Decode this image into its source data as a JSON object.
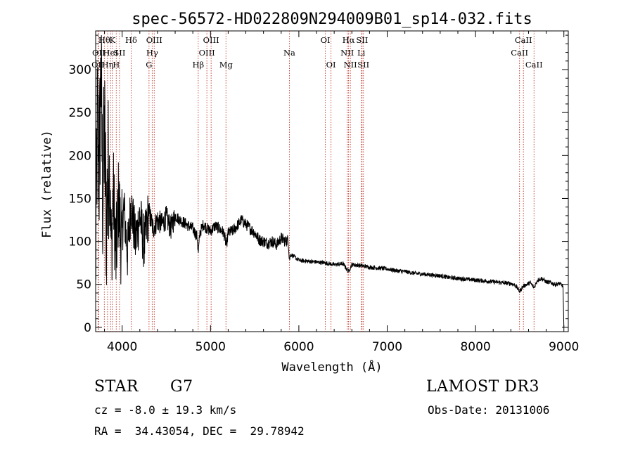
{
  "chart_data": {
    "type": "line",
    "title": "spec-56572-HD022809N294009B01_sp14-032.fits",
    "xlabel": "Wavelength (Å)",
    "ylabel": "Flux (relative)",
    "xlim": [
      3700,
      9050
    ],
    "ylim": [
      -5,
      345
    ],
    "xticks": [
      4000,
      5000,
      6000,
      7000,
      8000,
      9000
    ],
    "yticks": [
      0,
      50,
      100,
      150,
      200,
      250,
      300
    ],
    "grid": false,
    "series": [
      {
        "name": "spectrum",
        "x": [
          3700,
          3720,
          3740,
          3760,
          3780,
          3800,
          3820,
          3850,
          3880,
          3900,
          3930,
          3960,
          3990,
          4020,
          4060,
          4100,
          4150,
          4200,
          4250,
          4300,
          4350,
          4400,
          4450,
          4500,
          4550,
          4600,
          4650,
          4700,
          4750,
          4800,
          4850,
          4861,
          4880,
          4920,
          4960,
          5000,
          5050,
          5100,
          5150,
          5180,
          5200,
          5250,
          5300,
          5350,
          5400,
          5450,
          5500,
          5550,
          5600,
          5650,
          5700,
          5750,
          5800,
          5850,
          5880,
          5893,
          5910,
          5950,
          6000,
          6100,
          6200,
          6300,
          6400,
          6500,
          6563,
          6600,
          6700,
          6800,
          6900,
          7000,
          7100,
          7200,
          7300,
          7400,
          7500,
          7600,
          7700,
          7800,
          7900,
          8000,
          8100,
          8200,
          8300,
          8400,
          8450,
          8498,
          8542,
          8580,
          8620,
          8662,
          8700,
          8750,
          8800,
          8850,
          8900,
          8950,
          8990,
          9000
        ],
        "y": [
          70,
          250,
          180,
          300,
          150,
          230,
          120,
          200,
          90,
          160,
          80,
          150,
          95,
          140,
          85,
          145,
          100,
          130,
          95,
          135,
          115,
          125,
          120,
          128,
          115,
          130,
          125,
          122,
          118,
          115,
          105,
          85,
          110,
          120,
          115,
          112,
          118,
          115,
          110,
          95,
          110,
          112,
          118,
          125,
          120,
          115,
          110,
          102,
          100,
          98,
          100,
          96,
          104,
          100,
          102,
          80,
          85,
          82,
          78,
          77,
          76,
          75,
          73,
          74,
          65,
          73,
          72,
          70,
          69,
          68,
          66,
          65,
          63,
          62,
          61,
          60,
          58,
          57,
          56,
          55,
          54,
          53,
          52,
          51,
          49,
          42,
          48,
          50,
          52,
          46,
          55,
          57,
          53,
          52,
          50,
          51,
          48,
          0
        ]
      }
    ],
    "lines": [
      {
        "w": 3727,
        "label": "OII",
        "row": 3
      },
      {
        "w": 3734,
        "label": "OII",
        "row": 2
      },
      {
        "w": 3798,
        "label": "Hθ",
        "row": 1
      },
      {
        "w": 3835,
        "label": "Hη",
        "row": 3
      },
      {
        "w": 3869,
        "label": "HeI",
        "row": 2
      },
      {
        "w": 3889,
        "label": "K",
        "row": 1
      },
      {
        "w": 3933,
        "label": "H",
        "row": 3
      },
      {
        "w": 3970,
        "label": "SII",
        "row": 2
      },
      {
        "w": 4102,
        "label": "Hδ",
        "row": 1
      },
      {
        "w": 4304,
        "label": "G",
        "row": 3
      },
      {
        "w": 4340,
        "label": "Hγ",
        "row": 2
      },
      {
        "w": 4363,
        "label": "OIII",
        "row": 1
      },
      {
        "w": 4861,
        "label": "Hβ",
        "row": 3
      },
      {
        "w": 4959,
        "label": "OIII",
        "row": 2
      },
      {
        "w": 5007,
        "label": "OIII",
        "row": 1
      },
      {
        "w": 5175,
        "label": "Mg",
        "row": 3
      },
      {
        "w": 5893,
        "label": "Na",
        "row": 2
      },
      {
        "w": 6300,
        "label": "OI",
        "row": 1
      },
      {
        "w": 6364,
        "label": "OI",
        "row": 3
      },
      {
        "w": 6548,
        "label": "NII",
        "row": 2
      },
      {
        "w": 6563,
        "label": "Hα",
        "row": 1
      },
      {
        "w": 6583,
        "label": "NII",
        "row": 3
      },
      {
        "w": 6707,
        "label": "Li",
        "row": 2
      },
      {
        "w": 6716,
        "label": "SII",
        "row": 1
      },
      {
        "w": 6731,
        "label": "SII",
        "row": 3
      },
      {
        "w": 8498,
        "label": "CaII",
        "row": 2
      },
      {
        "w": 8542,
        "label": "CaII",
        "row": 1
      },
      {
        "w": 8662,
        "label": "CaII",
        "row": 3
      }
    ]
  },
  "info": {
    "object_class": "STAR",
    "subclass": "G7",
    "survey": "LAMOST DR3",
    "cz": "cz = -8.0 ± 19.3 km/s",
    "obs_date": "Obs-Date: 20131006",
    "coords": "RA =  34.43054, DEC =  29.78942"
  },
  "colors": {
    "spectrum": "#000000",
    "line_marker": "#c0392b"
  }
}
